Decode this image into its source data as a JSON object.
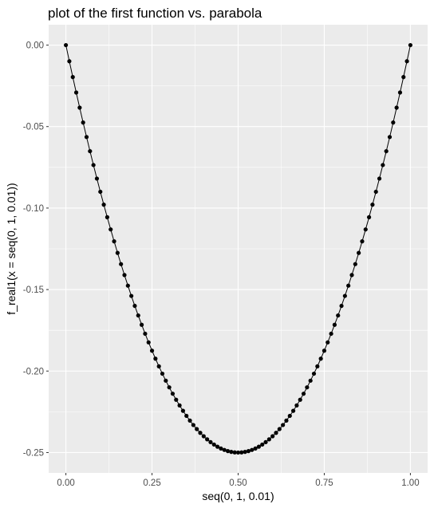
{
  "chart_data": {
    "type": "line",
    "title": "plot of the first function vs. parabola",
    "xlabel": "seq(0, 1, 0.01)",
    "ylabel": "f_real1(x = seq(0, 1, 0.01))",
    "xlim": [
      -0.05,
      1.05
    ],
    "ylim": [
      -0.2625,
      0.0125
    ],
    "x_ticks": [
      0.0,
      0.25,
      0.5,
      0.75,
      1.0
    ],
    "x_tick_labels": [
      "0.00",
      "0.25",
      "0.50",
      "0.75",
      "1.00"
    ],
    "y_ticks": [
      0.0,
      -0.05,
      -0.1,
      -0.15,
      -0.2,
      -0.25
    ],
    "y_tick_labels": [
      "0.00",
      "-0.05",
      "-0.10",
      "-0.15",
      "-0.20",
      "-0.25"
    ],
    "grid": true,
    "panel_background": "#ebebeb",
    "grid_color": "#ffffff",
    "series": [
      {
        "color": "#000000",
        "markers": true,
        "x": [
          0,
          0.01,
          0.02,
          0.03,
          0.04,
          0.05,
          0.06,
          0.07,
          0.08,
          0.09,
          0.1,
          0.11,
          0.12,
          0.13,
          0.14,
          0.15,
          0.16,
          0.17,
          0.18,
          0.19,
          0.2,
          0.21,
          0.22,
          0.23,
          0.24,
          0.25,
          0.26,
          0.27,
          0.28,
          0.29,
          0.3,
          0.31,
          0.32,
          0.33,
          0.34,
          0.35,
          0.36,
          0.37,
          0.38,
          0.39,
          0.4,
          0.41,
          0.42,
          0.43,
          0.44,
          0.45,
          0.46,
          0.47,
          0.48,
          0.49,
          0.5,
          0.51,
          0.52,
          0.53,
          0.54,
          0.55,
          0.56,
          0.57,
          0.58,
          0.59,
          0.6,
          0.61,
          0.62,
          0.63,
          0.64,
          0.65,
          0.66,
          0.67,
          0.68,
          0.69,
          0.7,
          0.71,
          0.72,
          0.73,
          0.74,
          0.75,
          0.76,
          0.77,
          0.78,
          0.79,
          0.8,
          0.81,
          0.82,
          0.83,
          0.84,
          0.85,
          0.86,
          0.87,
          0.88,
          0.89,
          0.9,
          0.91,
          0.92,
          0.93,
          0.94,
          0.95,
          0.96,
          0.97,
          0.98,
          0.99,
          1
        ],
        "y": [
          0,
          -0.0099,
          -0.0196,
          -0.0291,
          -0.0384,
          -0.0475,
          -0.0564,
          -0.0651,
          -0.0736,
          -0.0819,
          -0.09,
          -0.0979,
          -0.1056,
          -0.1131,
          -0.1204,
          -0.1275,
          -0.1344,
          -0.1411,
          -0.1476,
          -0.1539,
          -0.16,
          -0.1659,
          -0.1716,
          -0.1771,
          -0.1824,
          -0.1875,
          -0.1924,
          -0.1971,
          -0.2016,
          -0.2059,
          -0.21,
          -0.2139,
          -0.2176,
          -0.2211,
          -0.2244,
          -0.2275,
          -0.2304,
          -0.2331,
          -0.2356,
          -0.2379,
          -0.24,
          -0.2419,
          -0.2436,
          -0.2451,
          -0.2464,
          -0.2475,
          -0.2484,
          -0.2491,
          -0.2496,
          -0.2499,
          -0.25,
          -0.2499,
          -0.2496,
          -0.2491,
          -0.2484,
          -0.2475,
          -0.2464,
          -0.2451,
          -0.2436,
          -0.2419,
          -0.24,
          -0.2379,
          -0.2356,
          -0.2331,
          -0.2304,
          -0.2275,
          -0.2244,
          -0.2211,
          -0.2176,
          -0.2139,
          -0.21,
          -0.2059,
          -0.2016,
          -0.1971,
          -0.1924,
          -0.1875,
          -0.1824,
          -0.1771,
          -0.1716,
          -0.1659,
          -0.16,
          -0.1539,
          -0.1476,
          -0.1411,
          -0.1344,
          -0.1275,
          -0.1204,
          -0.1131,
          -0.1056,
          -0.0979,
          -0.09,
          -0.0819,
          -0.0736,
          -0.0651,
          -0.0564,
          -0.0475,
          -0.0384,
          -0.0291,
          -0.0196,
          -0.0099,
          0
        ]
      }
    ]
  }
}
